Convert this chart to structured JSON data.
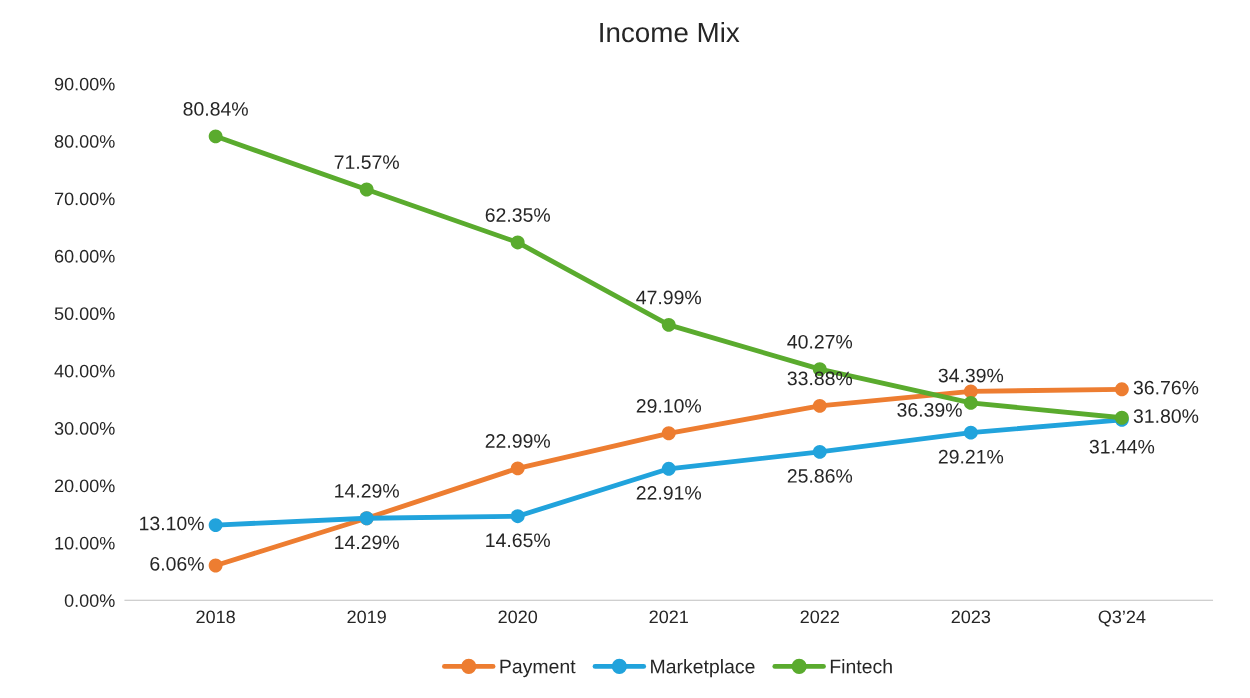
{
  "chart_data": {
    "type": "line",
    "title": "Income Mix",
    "categories": [
      "2018",
      "2019",
      "2020",
      "2021",
      "2022",
      "2023",
      "Q3’24"
    ],
    "series": [
      {
        "name": "Payment",
        "color": "#ed7d31",
        "values": [
          6.06,
          14.29,
          22.99,
          29.1,
          33.88,
          36.39,
          36.76
        ],
        "value_labels": [
          "6.06%",
          "14.29%",
          "22.99%",
          "29.10%",
          "33.88%",
          "36.39%",
          "36.76%"
        ]
      },
      {
        "name": "Marketplace",
        "color": "#21a3dc",
        "values": [
          13.1,
          14.29,
          14.65,
          22.91,
          25.86,
          29.21,
          31.44
        ],
        "value_labels": [
          "13.10%",
          "14.29%",
          "14.65%",
          "22.91%",
          "25.86%",
          "29.21%",
          "31.44%"
        ]
      },
      {
        "name": "Fintech",
        "color": "#5aab2e",
        "values": [
          80.84,
          71.57,
          62.35,
          47.99,
          40.27,
          34.39,
          31.8
        ],
        "value_labels": [
          "80.84%",
          "71.57%",
          "62.35%",
          "47.99%",
          "40.27%",
          "34.39%",
          "31.80%"
        ]
      }
    ],
    "ylim": [
      0,
      90
    ],
    "yticks": [
      {
        "value": 0,
        "label": "0.00%"
      },
      {
        "value": 10,
        "label": "10.00%"
      },
      {
        "value": 20,
        "label": "20.00%"
      },
      {
        "value": 30,
        "label": "30.00%"
      },
      {
        "value": 40,
        "label": "40.00%"
      },
      {
        "value": 50,
        "label": "50.00%"
      },
      {
        "value": 60,
        "label": "60.00%"
      },
      {
        "value": 70,
        "label": "70.00%"
      },
      {
        "value": 80,
        "label": "80.00%"
      },
      {
        "value": 90,
        "label": "90.00%"
      }
    ],
    "grid": false,
    "legend": "bottom",
    "marker": "circle",
    "line_style": "solid"
  }
}
